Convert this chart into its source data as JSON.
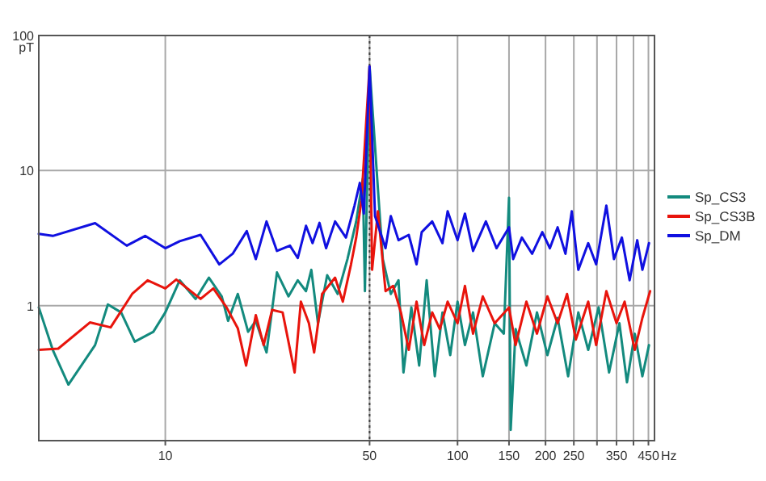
{
  "chart_data": {
    "type": "line",
    "xlabel": "Hz",
    "ylabel": "pT",
    "log": "xy",
    "grid": true,
    "legend": "right",
    "line_style": "solid",
    "marker": "none",
    "xlim": [
      3.69,
      472
    ],
    "ylim": [
      0.1,
      100
    ],
    "xticks": [
      10,
      50,
      100,
      150,
      200,
      250,
      {
        "value": 300,
        "label": null
      },
      350,
      {
        "value": 400,
        "label": null
      },
      450
    ],
    "yticks": [
      {
        "value": 0.1,
        "label": null
      },
      1,
      10,
      100
    ],
    "ref_lines": [
      {
        "axis": "x",
        "value": 50,
        "label": null,
        "line_style": "dotted",
        "color": "#404040"
      }
    ],
    "series": [
      {
        "name": "Sp_CS3",
        "color": "#138a7e",
        "x": [
          3.69,
          4.12,
          4.66,
          5.75,
          6.36,
          7.06,
          7.86,
          9.1,
          10,
          11.2,
          12.7,
          14.1,
          15.6,
          16.4,
          17.7,
          19.2,
          20.4,
          22.2,
          24.1,
          26.4,
          28.4,
          30.3,
          31.6,
          33.3,
          35.8,
          38.9,
          42,
          45,
          47.4,
          48.2,
          50,
          53.4,
          55.5,
          59.1,
          62.8,
          65.3,
          69.5,
          73.9,
          78.4,
          83.6,
          88.8,
          94.4,
          100,
          106,
          113,
          122,
          134,
          144,
          150,
          152,
          158,
          172,
          187,
          203,
          220,
          239,
          259,
          280,
          304,
          330,
          358,
          380,
          404,
          429,
          452
        ],
        "values": [
          0.97,
          0.47,
          0.26,
          0.51,
          1.02,
          0.89,
          0.54,
          0.64,
          0.89,
          1.54,
          1.12,
          1.61,
          1.17,
          0.77,
          1.22,
          0.64,
          0.77,
          0.45,
          1.76,
          1.17,
          1.54,
          1.28,
          1.84,
          0.74,
          1.68,
          1.22,
          2.21,
          4.2,
          8.7,
          1.28,
          59,
          7.3,
          2.21,
          1.22,
          1.54,
          0.32,
          0.97,
          0.36,
          1.54,
          0.3,
          0.89,
          0.43,
          1.07,
          0.51,
          0.89,
          0.3,
          0.74,
          0.62,
          6.3,
          0.12,
          0.67,
          0.36,
          0.89,
          0.43,
          0.81,
          0.3,
          0.89,
          0.47,
          0.97,
          0.32,
          0.74,
          0.27,
          0.62,
          0.3,
          0.51
        ]
      },
      {
        "name": "Sp_CS3B",
        "color": "#e8140c",
        "x": [
          3.69,
          4.3,
          5.52,
          6.5,
          7.7,
          8.7,
          10,
          10.9,
          13.2,
          14.6,
          16.2,
          17.7,
          18.9,
          20.4,
          21.7,
          23.2,
          25.2,
          27.7,
          29.1,
          31,
          32.3,
          34.4,
          38.1,
          40.5,
          43.2,
          45,
          46.9,
          50,
          51,
          53.4,
          56.7,
          60.2,
          64,
          68.1,
          72.4,
          76.9,
          81.9,
          87,
          92.5,
          100,
          106,
          113,
          122,
          134,
          150,
          158,
          172,
          187,
          203,
          220,
          237,
          254,
          280,
          298,
          323,
          350,
          373,
          404,
          429,
          456
        ],
        "values": [
          0.47,
          0.48,
          0.75,
          0.69,
          1.22,
          1.54,
          1.34,
          1.56,
          1.12,
          1.34,
          0.97,
          0.68,
          0.36,
          0.85,
          0.51,
          0.93,
          0.89,
          0.32,
          1.07,
          0.74,
          0.45,
          1.22,
          1.61,
          1.07,
          2.02,
          3.19,
          6,
          59,
          1.84,
          5,
          1.28,
          1.4,
          0.89,
          0.47,
          1.07,
          0.51,
          0.89,
          0.67,
          1.07,
          0.74,
          1.4,
          0.62,
          1.17,
          0.74,
          0.97,
          0.51,
          1.07,
          0.62,
          1.17,
          0.74,
          1.22,
          0.56,
          1.07,
          0.51,
          1.28,
          0.74,
          1.07,
          0.47,
          0.81,
          1.28
        ]
      },
      {
        "name": "Sp_DM",
        "color": "#1010e0",
        "x": [
          3.69,
          4.12,
          5.75,
          7.38,
          8.53,
          10,
          11.2,
          13.2,
          15.3,
          17,
          19,
          20.4,
          22.2,
          24.1,
          26.7,
          28.4,
          30.3,
          31.9,
          33.7,
          35.5,
          38.1,
          41.5,
          44.4,
          46.3,
          47.8,
          50,
          52.2,
          56.7,
          59.1,
          62.8,
          68.1,
          72.4,
          75.4,
          81.9,
          88.8,
          92.5,
          100,
          106,
          113,
          125,
          136,
          150,
          155,
          166,
          180,
          195,
          207,
          220,
          234,
          246,
          259,
          280,
          298,
          323,
          343,
          365,
          388,
          412,
          429,
          452
        ],
        "values": [
          3.4,
          3.28,
          4.08,
          2.78,
          3.28,
          2.66,
          3,
          3.34,
          2.02,
          2.42,
          3.56,
          2.21,
          4.2,
          2.54,
          2.78,
          2.25,
          3.9,
          2.9,
          4.1,
          2.66,
          4.2,
          3.19,
          5.5,
          8.1,
          4.8,
          59,
          4.6,
          2.66,
          4.6,
          3.05,
          3.34,
          2.02,
          3.5,
          4.2,
          2.9,
          5,
          3.05,
          4.8,
          2.54,
          4.2,
          2.66,
          3.8,
          2.21,
          3.19,
          2.42,
          3.5,
          2.66,
          3.8,
          2.42,
          5,
          1.84,
          2.9,
          2.02,
          5.5,
          2.21,
          3.19,
          1.54,
          3.05,
          1.84,
          2.9
        ]
      }
    ]
  }
}
